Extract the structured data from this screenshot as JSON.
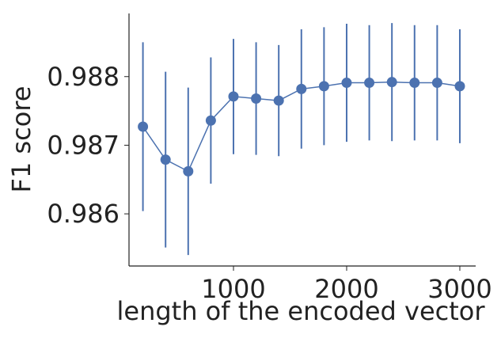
{
  "chart_data": {
    "type": "line",
    "xlabel": "length of the encoded vector",
    "ylabel": "F1 score",
    "xlim": [
      77,
      3140
    ],
    "ylim": [
      0.98524,
      0.98892
    ],
    "xticks": [
      1000,
      2000,
      3000
    ],
    "yticks": [
      0.986,
      0.987,
      0.988
    ],
    "x": [
      200,
      400,
      600,
      800,
      1000,
      1200,
      1400,
      1600,
      1800,
      2000,
      2200,
      2400,
      2600,
      2800,
      3000
    ],
    "series": [
      {
        "color": "#4c72b0",
        "values": [
          0.98727,
          0.98679,
          0.98662,
          0.98736,
          0.98771,
          0.98768,
          0.98765,
          0.98782,
          0.98786,
          0.98791,
          0.98791,
          0.98792,
          0.98791,
          0.98791,
          0.98786
        ],
        "errors": [
          0.00123,
          0.00128,
          0.00122,
          0.00092,
          0.00084,
          0.00082,
          0.00081,
          0.00087,
          0.00086,
          0.00086,
          0.00084,
          0.00086,
          0.00084,
          0.00084,
          0.00083
        ]
      }
    ]
  }
}
